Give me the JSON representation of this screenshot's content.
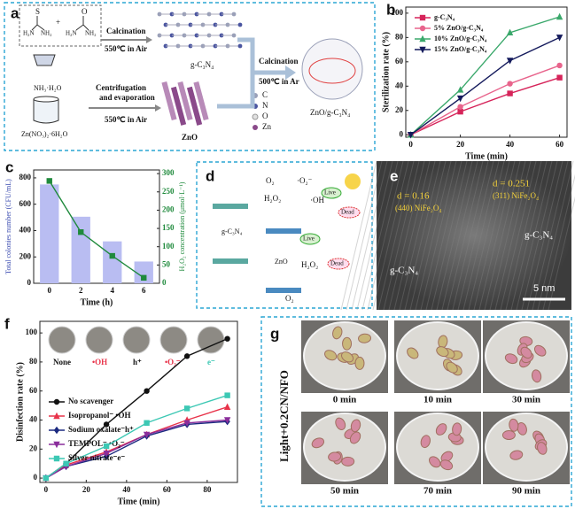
{
  "panel_a": {
    "label": "a",
    "thiourea": {
      "atom": "S",
      "left": "H₂N",
      "right": "NH₂"
    },
    "plus": "+",
    "urea": {
      "atom": "O",
      "left": "H₂N",
      "right": "NH₂"
    },
    "step1": {
      "process": "Calcination",
      "condition": "550℃ in Air",
      "product": "g-C₃N₄"
    },
    "precursors": [
      "NH₃·H₂O",
      "Zn(NO₃)₂·6H₂O"
    ],
    "step2": {
      "process": [
        "Centrifugation",
        "and evaporation"
      ],
      "condition": "550℃ in Air",
      "product": "ZnO"
    },
    "step3": {
      "process": "Calcination",
      "condition": "500℃ in Ar",
      "product": "ZnO/g-C₃N₄"
    },
    "legend": [
      "C",
      "N",
      "O",
      "Zn"
    ]
  },
  "chart_data": [
    {
      "type": "line",
      "label": "b",
      "xlabel": "Time (min)",
      "ylabel": "Sterilization rate (%)",
      "x": [
        0,
        20,
        40,
        60
      ],
      "xlim": [
        -2,
        63
      ],
      "ylim": [
        -2,
        105
      ],
      "xticks": [
        0,
        20,
        40,
        60
      ],
      "yticks": [
        0,
        20,
        40,
        60,
        80,
        100
      ],
      "legend": "upper left",
      "series": [
        {
          "name": "g-C₃N₄",
          "color": "#d6245a",
          "marker": "square",
          "values": [
            0,
            19,
            34,
            47
          ]
        },
        {
          "name": "5% ZnO/g-C₃N₄",
          "color": "#e8648c",
          "marker": "circle",
          "values": [
            0,
            23,
            42,
            57
          ]
        },
        {
          "name": "10% ZnO/g-C₃N₄",
          "color": "#3aa86b",
          "marker": "triangle",
          "values": [
            0,
            37,
            84,
            97
          ]
        },
        {
          "name": "15% ZnO/g-C₃N₄",
          "color": "#141a5c",
          "marker": "triangle-down",
          "values": [
            0,
            30,
            61,
            80
          ]
        }
      ]
    },
    {
      "type": "bar",
      "label": "c",
      "xlabel": "Time (h)",
      "ylabel": "Total colonies number (CFU/mL)",
      "y2label": "H₂O₂ concentration (μmol·L⁻¹)",
      "categories": [
        "0",
        "2",
        "4",
        "6"
      ],
      "ylim": [
        0,
        860
      ],
      "yticks": [
        0,
        200,
        400,
        600,
        800
      ],
      "y2lim": [
        0,
        310
      ],
      "y2ticks": [
        0,
        50,
        100,
        150,
        200,
        250,
        300
      ],
      "series": [
        {
          "type": "bar",
          "color": "#b9bdf2",
          "values": [
            750,
            505,
            318,
            165
          ]
        },
        {
          "type": "line",
          "axis": "y2",
          "color": "#1f8a3c",
          "marker": "square",
          "values": [
            280,
            140,
            75,
            15
          ]
        }
      ]
    },
    {
      "type": "line",
      "label": "f",
      "xlabel": "Time (min)",
      "ylabel": "Disinfection rate (%)",
      "x": [
        0,
        10,
        30,
        50,
        70,
        90
      ],
      "xlim": [
        -3,
        95
      ],
      "ylim": [
        -3,
        108
      ],
      "xticks": [
        0,
        20,
        40,
        60,
        80
      ],
      "yticks": [
        0,
        20,
        40,
        60,
        80,
        100
      ],
      "legend": "center left",
      "annotations": [
        "None",
        "•OH",
        "h⁺",
        "•O₂⁻",
        "e⁻"
      ],
      "series": [
        {
          "name": "No scavenger",
          "color": "#111111",
          "marker": "circle",
          "values": [
            0,
            10,
            37,
            60,
            84,
            96
          ]
        },
        {
          "name": "Isopropanol⁻ •OH",
          "color": "#e8334a",
          "marker": "triangle",
          "values": [
            0,
            9,
            18,
            30,
            40,
            49
          ]
        },
        {
          "name": "Sodium oxalate⁻h⁺",
          "color": "#1c2a80",
          "marker": "diamond",
          "values": [
            0,
            8,
            15,
            29,
            37,
            39
          ]
        },
        {
          "name": "TEMPOL⁻ •O₂⁻",
          "color": "#8a2d9b",
          "marker": "triangle-down",
          "values": [
            0,
            8,
            17,
            30,
            38,
            40
          ]
        },
        {
          "name": "Silver nitrate⁻e⁻",
          "color": "#3cc8b4",
          "marker": "square",
          "values": [
            0,
            10,
            22,
            38,
            48,
            57
          ]
        }
      ]
    }
  ],
  "panel_d": {
    "label": "d",
    "texts": [
      "O₂",
      "·O₂⁻",
      "H₂O₂",
      "·OH",
      "Live",
      "Dead",
      "g-C₃N₄",
      "ZnO",
      "Live",
      "H₂O₂",
      "Dead",
      "O₂"
    ]
  },
  "panel_e": {
    "label": "e",
    "fringes": [
      {
        "d": "d = 0.16",
        "plane": "(440) NiFe₂O₄"
      },
      {
        "d": "d = 0.251",
        "plane": "(311) NiFe₂O₄"
      }
    ],
    "regions": [
      "g-C₃N₄",
      "g-C₃N₄"
    ],
    "scale": "5 nm"
  },
  "panel_g": {
    "label": "g",
    "condition": "Light+0.2CN/NFO",
    "times": [
      "0 min",
      "10 min",
      "30 min",
      "50 min",
      "70 min",
      "90 min"
    ]
  }
}
